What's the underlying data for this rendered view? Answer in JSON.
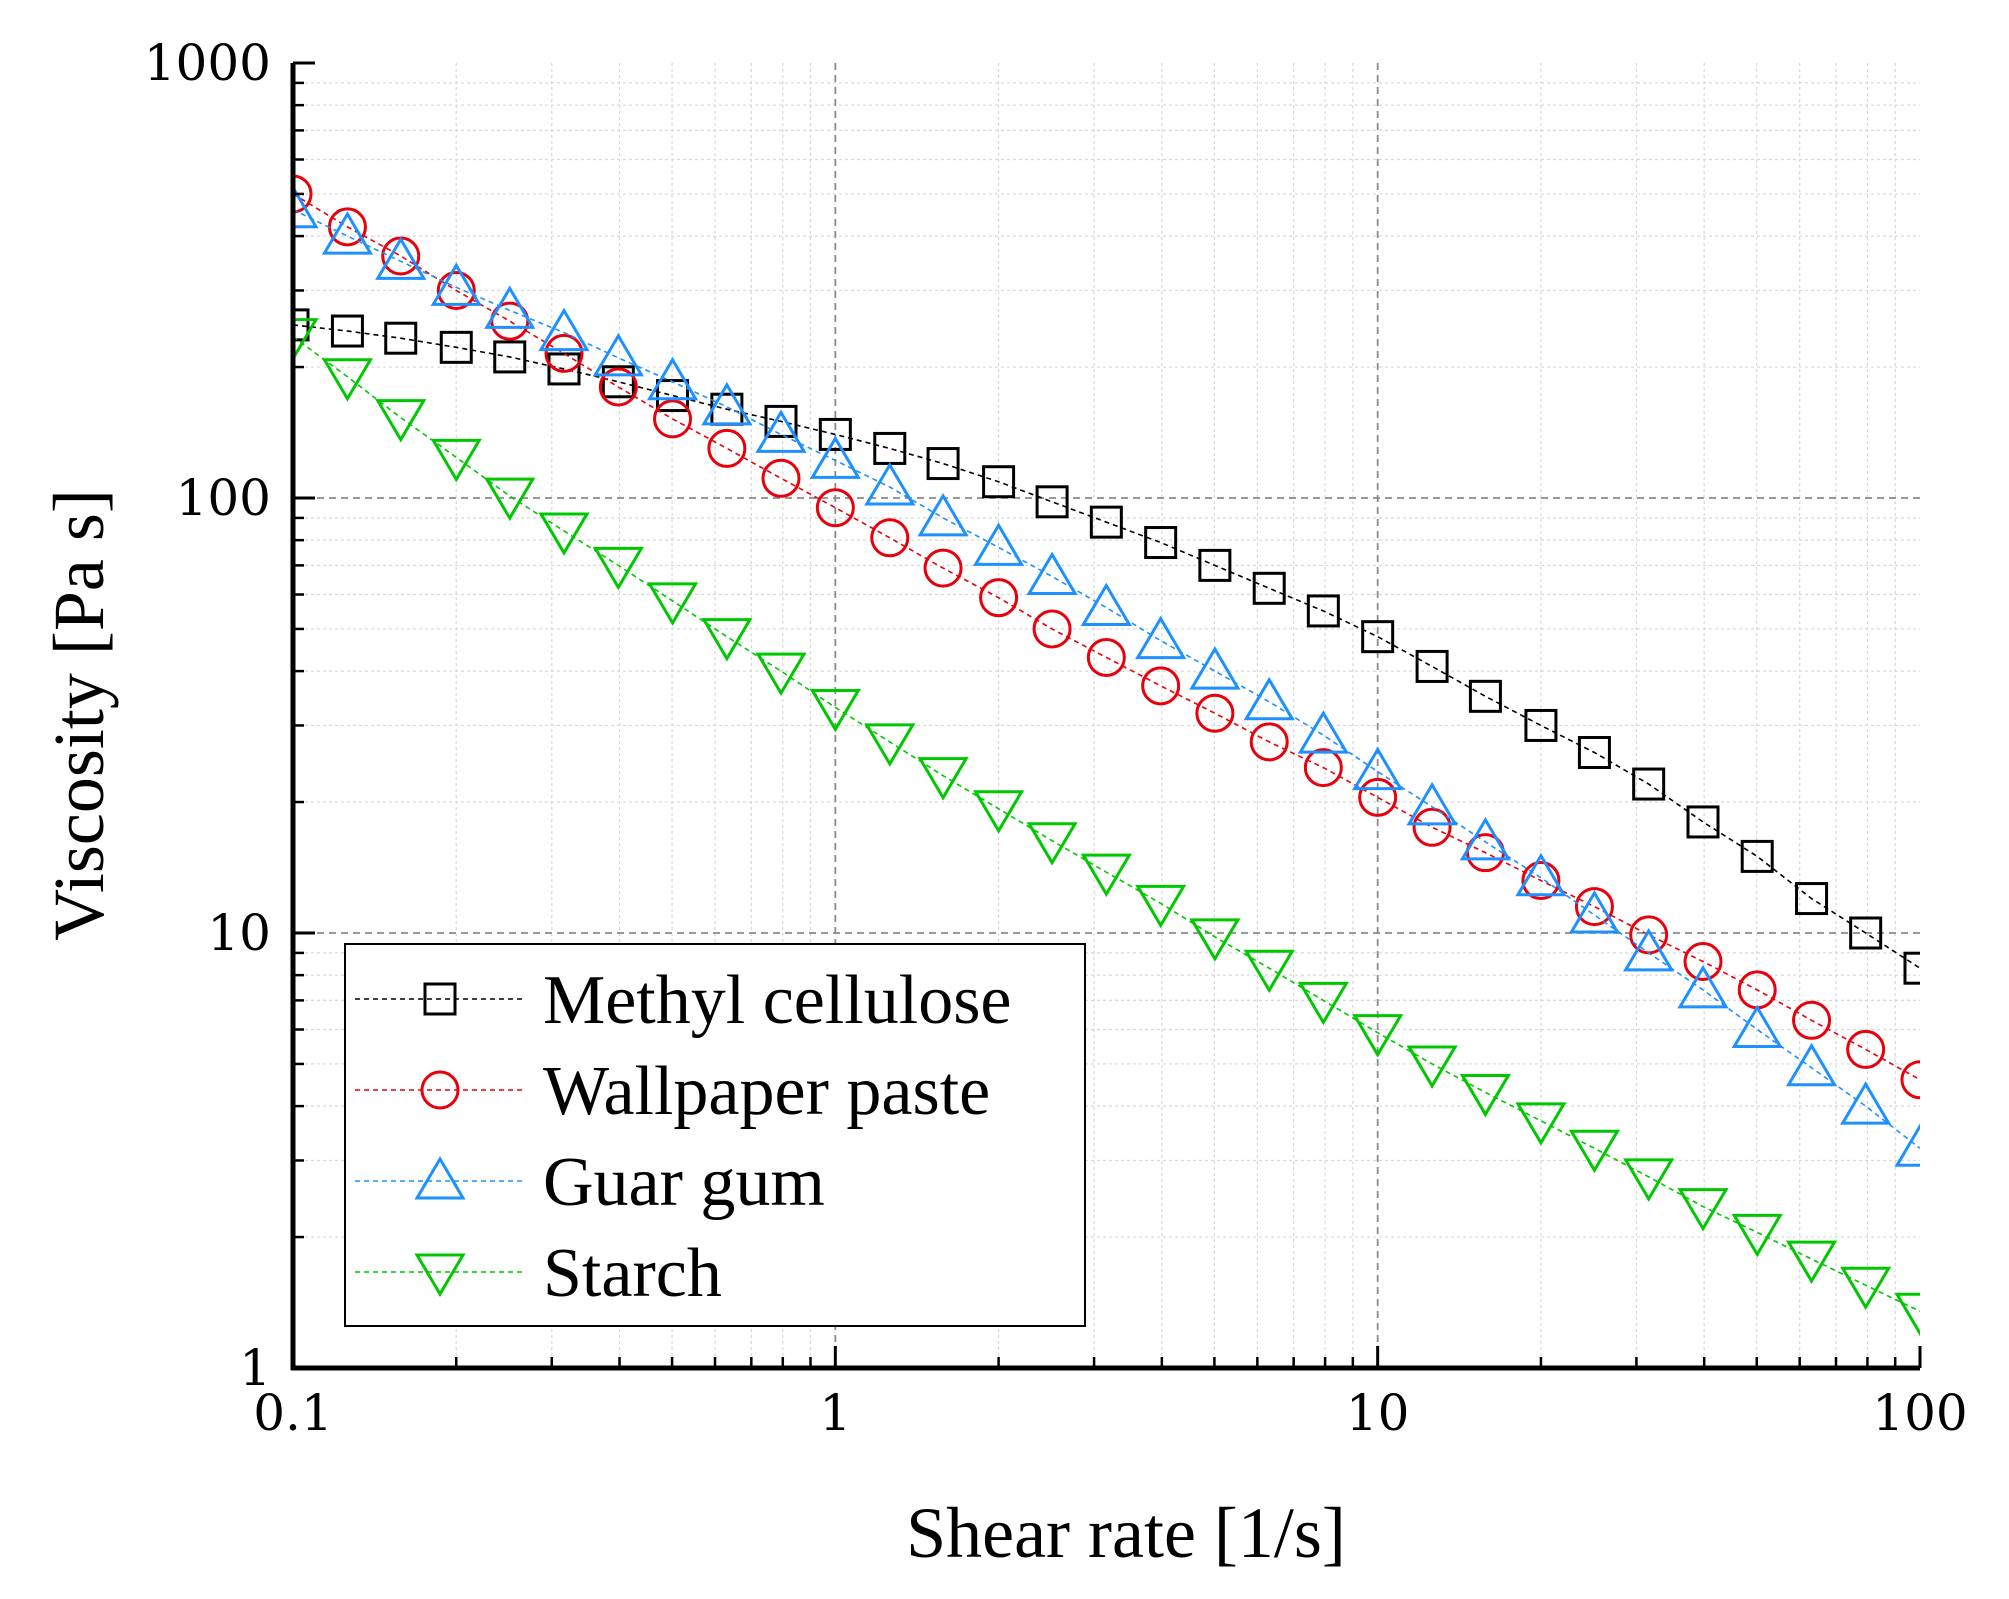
{
  "chart_data": {
    "type": "scatter",
    "xscale": "log",
    "yscale": "log",
    "xlabel": "Shear rate [1/s]",
    "ylabel": "Viscosity  [Pa s]",
    "xlim": [
      0.1,
      100
    ],
    "ylim": [
      1,
      1000
    ],
    "xticks": [
      "0.1",
      "1",
      "10",
      "100"
    ],
    "yticks": [
      "1",
      "10",
      "100",
      "1000"
    ],
    "grid": true,
    "legend_position": "bottom-left",
    "x": [
      0.1,
      0.126,
      0.158,
      0.2,
      0.251,
      0.316,
      0.398,
      0.501,
      0.631,
      0.794,
      1,
      1.26,
      1.58,
      2,
      2.51,
      3.16,
      3.98,
      5.01,
      6.31,
      7.94,
      10,
      12.6,
      15.8,
      20,
      25.1,
      31.6,
      39.8,
      50.1,
      63.1,
      79.4,
      100
    ],
    "series": [
      {
        "name": "Methyl cellulose",
        "marker": "square",
        "color": "#000000",
        "values": [
          250,
          242,
          233,
          222,
          211,
          198,
          185,
          172,
          160,
          150,
          140,
          130,
          120,
          109,
          98,
          88,
          79,
          70,
          62,
          55,
          48,
          41,
          35,
          30,
          26,
          22,
          18,
          15,
          12,
          10,
          8.3
        ]
      },
      {
        "name": "Wallpaper paste",
        "marker": "circle",
        "color": "#e8000b",
        "values": [
          500,
          420,
          360,
          300,
          255,
          215,
          180,
          152,
          130,
          111,
          95,
          81,
          69,
          59,
          50,
          43,
          37,
          32,
          27.5,
          24,
          20.5,
          17.5,
          15.3,
          13.2,
          11.5,
          9.9,
          8.6,
          7.4,
          6.3,
          5.4,
          4.6
        ]
      },
      {
        "name": "Guar gum",
        "marker": "triangle-up",
        "color": "#1e90ff",
        "values": [
          460,
          400,
          350,
          305,
          270,
          240,
          210,
          185,
          162,
          140,
          122,
          106,
          90,
          77,
          66,
          56,
          47,
          40,
          34,
          28.5,
          23.5,
          19.5,
          16.2,
          13.4,
          11,
          9,
          7.4,
          6,
          4.9,
          4,
          3.2
        ]
      },
      {
        "name": "Starch",
        "marker": "triangle-down",
        "color": "#00c800",
        "values": [
          235,
          190,
          153,
          124,
          101,
          84,
          70,
          58,
          48,
          40,
          33,
          27.5,
          23,
          19.3,
          16.3,
          13.8,
          11.7,
          9.8,
          8.3,
          7,
          5.9,
          5,
          4.3,
          3.7,
          3.2,
          2.75,
          2.35,
          2.05,
          1.78,
          1.55,
          1.35
        ]
      }
    ]
  }
}
